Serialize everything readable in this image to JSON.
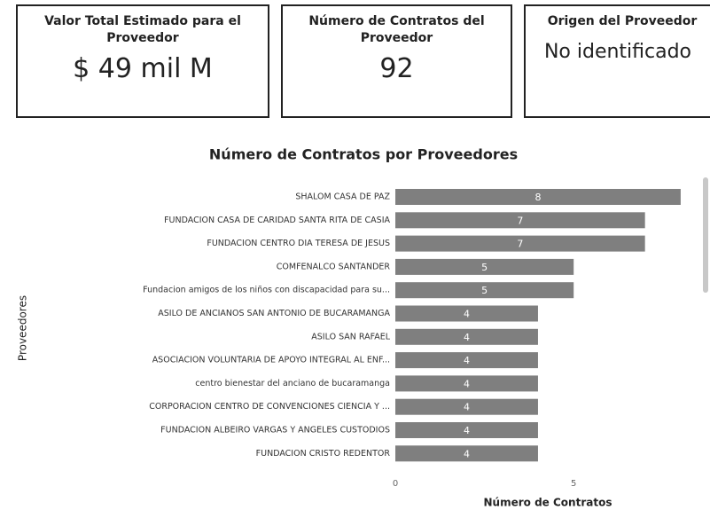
{
  "cards": [
    {
      "title": "Valor Total Estimado para el Proveedor",
      "value": "$ 49 mil M"
    },
    {
      "title": "Número de Contratos del Proveedor",
      "value": "92"
    },
    {
      "title": "Origen del Proveedor",
      "value": "No identificado"
    }
  ],
  "chart_data": {
    "type": "bar",
    "orientation": "horizontal",
    "title": "Número de Contratos por Proveedores",
    "x_label": "Número de Contratos",
    "y_label": "Proveedores",
    "categories": [
      "SHALOM CASA DE PAZ",
      "FUNDACION CASA DE CARIDAD SANTA RITA DE CASIA",
      "FUNDACION CENTRO DIA TERESA DE JESUS",
      "COMFENALCO SANTANDER",
      "Fundacion amigos de los niños con discapacidad para su...",
      "ASILO DE ANCIANOS SAN ANTONIO DE BUCARAMANGA",
      "ASILO SAN RAFAEL",
      "ASOCIACION VOLUNTARIA DE APOYO INTEGRAL AL ENF...",
      "centro bienestar del anciano de bucaramanga",
      "CORPORACION CENTRO DE CONVENCIONES CIENCIA Y ...",
      "FUNDACION ALBEIRO VARGAS Y ANGELES CUSTODIOS",
      "FUNDACION CRISTO REDENTOR"
    ],
    "values": [
      8,
      7,
      7,
      5,
      5,
      4,
      4,
      4,
      4,
      4,
      4,
      4
    ],
    "color": "#7f7f7f",
    "xlim": [
      0,
      8.4
    ],
    "xticks": [
      0,
      5
    ],
    "grid": false
  }
}
